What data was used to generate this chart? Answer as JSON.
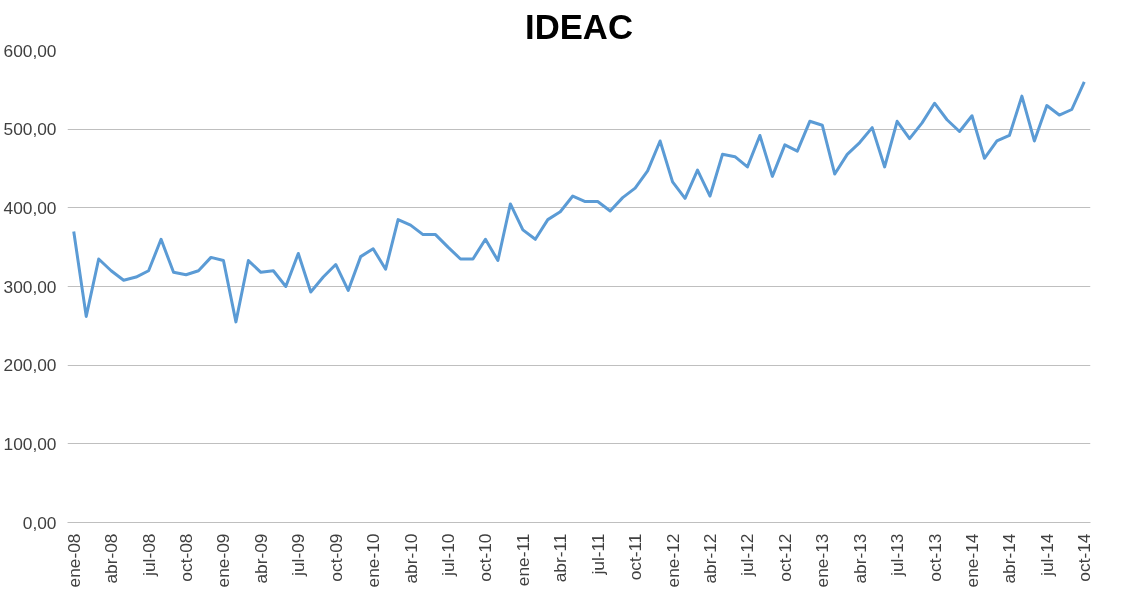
{
  "chart_data": {
    "type": "line",
    "title": "IDEAC",
    "categories": [
      "ene-08",
      null,
      null,
      "abr-08",
      null,
      null,
      "jul-08",
      null,
      null,
      "oct-08",
      null,
      null,
      "ene-09",
      null,
      null,
      "abr-09",
      null,
      null,
      "jul-09",
      null,
      null,
      "oct-09",
      null,
      null,
      "ene-10",
      null,
      null,
      "abr-10",
      null,
      null,
      "jul-10",
      null,
      null,
      "oct-10",
      null,
      null,
      "ene-11",
      null,
      null,
      "abr-11",
      null,
      null,
      "jul-11",
      null,
      null,
      "oct-11",
      null,
      null,
      "ene-12",
      null,
      null,
      "abr-12",
      null,
      null,
      "jul-12",
      null,
      null,
      "oct-12",
      null,
      null,
      "ene-13",
      null,
      null,
      "abr-13",
      null,
      null,
      "jul-13",
      null,
      null,
      "oct-13",
      null,
      null,
      "ene-14",
      null,
      null,
      "abr-14",
      null,
      null,
      "jul-14",
      null,
      null,
      "oct-14"
    ],
    "series": [
      {
        "color": "#5b9bd5",
        "values": [
          370,
          262,
          335,
          320,
          308,
          312,
          320,
          360,
          318,
          315,
          320,
          337,
          333,
          255,
          333,
          318,
          320,
          300,
          342,
          293,
          312,
          328,
          295,
          338,
          348,
          322,
          385,
          378,
          366,
          366,
          350,
          335,
          335,
          360,
          333,
          405,
          372,
          360,
          385,
          395,
          415,
          408,
          408,
          396,
          413,
          425,
          447,
          485,
          433,
          412,
          448,
          415,
          468,
          465,
          452,
          492,
          440,
          480,
          472,
          510,
          505,
          443,
          468,
          483,
          502,
          452,
          510,
          488,
          508,
          533,
          512,
          497,
          517,
          463,
          485,
          492,
          542,
          485,
          530,
          518,
          525,
          560
        ]
      }
    ],
    "ylim": [
      0,
      600
    ],
    "yticks": [
      {
        "value": 0,
        "label": "0,00"
      },
      {
        "value": 100,
        "label": "100,00"
      },
      {
        "value": 200,
        "label": "200,00"
      },
      {
        "value": 300,
        "label": "300,00"
      },
      {
        "value": 400,
        "label": "400,00"
      },
      {
        "value": 500,
        "label": "500,00"
      },
      {
        "value": 600,
        "label": "600,00"
      }
    ],
    "grid": "y",
    "marker": "none",
    "line_style": "solid"
  }
}
